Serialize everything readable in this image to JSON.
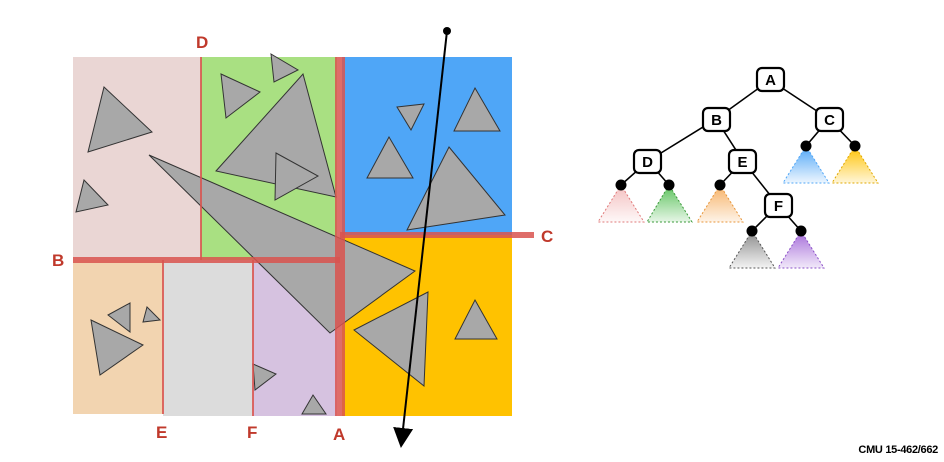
{
  "colors": {
    "region_D_left": "#ead6d4",
    "region_D_right": "#a9e082",
    "region_C_top": "#4fa6f7",
    "region_C_bottom": "#ffc200",
    "region_E_left": "#f2d4b0",
    "region_E_mid": "#dcdcdc",
    "region_F_right": "#d6c2e0",
    "split_line": "#d9534f",
    "triangle_fill": "#a8a8a8",
    "label_color": "#c0392b"
  },
  "split_labels": {
    "A": "A",
    "B": "B",
    "C": "C",
    "D": "D",
    "E": "E",
    "F": "F"
  },
  "tree": {
    "nodes": [
      "A",
      "B",
      "C",
      "D",
      "E",
      "F"
    ],
    "edges": [
      [
        "A",
        "B"
      ],
      [
        "A",
        "C"
      ],
      [
        "B",
        "D"
      ],
      [
        "B",
        "E"
      ],
      [
        "E",
        "F"
      ]
    ],
    "leaf_colors": [
      "#f2b8b8",
      "#5cc25c",
      "#f7b267",
      "#4fa6f7",
      "#ffc200",
      "#999999",
      "#a56cd9"
    ]
  },
  "footer": "CMU 15-462/662"
}
